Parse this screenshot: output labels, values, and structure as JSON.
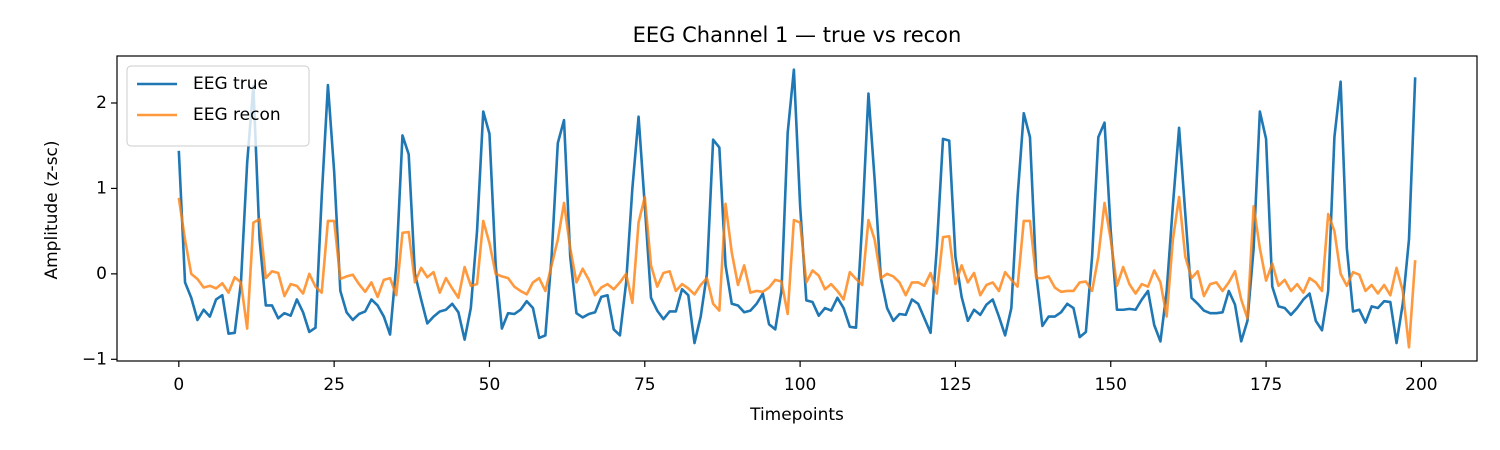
{
  "chart_data": {
    "type": "line",
    "title": "EEG Channel 1 — true vs recon",
    "xlabel": "Timepoints",
    "ylabel": "Amplitude (z-sc)",
    "xlim": [
      -9.95,
      208.95
    ],
    "ylim": [
      -1.02,
      2.55
    ],
    "xticks": [
      0,
      25,
      50,
      75,
      100,
      125,
      150,
      175,
      200
    ],
    "yticks": [
      {
        "value": -1,
        "label": "−1"
      },
      0,
      1,
      2
    ],
    "legend": "upper left",
    "x": [
      0,
      1,
      2,
      3,
      4,
      5,
      6,
      7,
      8,
      9,
      10,
      11,
      12,
      13,
      14,
      15,
      16,
      17,
      18,
      19,
      20,
      21,
      22,
      23,
      24,
      25,
      26,
      27,
      28,
      29,
      30,
      31,
      32,
      33,
      34,
      35,
      36,
      37,
      38,
      39,
      40,
      41,
      42,
      43,
      44,
      45,
      46,
      47,
      48,
      49,
      50,
      51,
      52,
      53,
      54,
      55,
      56,
      57,
      58,
      59,
      60,
      61,
      62,
      63,
      64,
      65,
      66,
      67,
      68,
      69,
      70,
      71,
      72,
      73,
      74,
      75,
      76,
      77,
      78,
      79,
      80,
      81,
      82,
      83,
      84,
      85,
      86,
      87,
      88,
      89,
      90,
      91,
      92,
      93,
      94,
      95,
      96,
      97,
      98,
      99,
      100,
      101,
      102,
      103,
      104,
      105,
      106,
      107,
      108,
      109,
      110,
      111,
      112,
      113,
      114,
      115,
      116,
      117,
      118,
      119,
      120,
      121,
      122,
      123,
      124,
      125,
      126,
      127,
      128,
      129,
      130,
      131,
      132,
      133,
      134,
      135,
      136,
      137,
      138,
      139,
      140,
      141,
      142,
      143,
      144,
      145,
      146,
      147,
      148,
      149,
      150,
      151,
      152,
      153,
      154,
      155,
      156,
      157,
      158,
      159,
      160,
      161,
      162,
      163,
      164,
      165,
      166,
      167,
      168,
      169,
      170,
      171,
      172,
      173,
      174,
      175,
      176,
      177,
      178,
      179,
      180,
      181,
      182,
      183,
      184,
      185,
      186,
      187,
      188,
      189,
      190,
      191,
      192,
      193,
      194,
      195,
      196,
      197,
      198,
      199
    ],
    "series": [
      {
        "name": "EEG true",
        "color": "#1f77b4",
        "alpha": 1,
        "values": [
          1.44,
          -0.1,
          -0.28,
          -0.54,
          -0.42,
          -0.5,
          -0.3,
          -0.25,
          -0.7,
          -0.69,
          -0.1,
          1.3,
          2.2,
          0.4,
          -0.37,
          -0.37,
          -0.52,
          -0.46,
          -0.49,
          -0.3,
          -0.45,
          -0.68,
          -0.63,
          0.9,
          2.21,
          1.2,
          -0.2,
          -0.45,
          -0.54,
          -0.47,
          -0.44,
          -0.3,
          -0.37,
          -0.5,
          -0.71,
          0.1,
          1.62,
          1.4,
          0.0,
          -0.3,
          -0.58,
          -0.5,
          -0.44,
          -0.42,
          -0.35,
          -0.45,
          -0.77,
          -0.4,
          0.5,
          1.9,
          1.64,
          0.1,
          -0.64,
          -0.46,
          -0.47,
          -0.42,
          -0.32,
          -0.4,
          -0.75,
          -0.72,
          0.2,
          1.53,
          1.8,
          0.2,
          -0.46,
          -0.51,
          -0.47,
          -0.45,
          -0.27,
          -0.25,
          -0.65,
          -0.72,
          -0.1,
          1.0,
          1.84,
          0.8,
          -0.28,
          -0.43,
          -0.53,
          -0.44,
          -0.44,
          -0.18,
          -0.25,
          -0.81,
          -0.5,
          0.0,
          1.57,
          1.48,
          0.1,
          -0.35,
          -0.37,
          -0.45,
          -0.43,
          -0.35,
          -0.23,
          -0.59,
          -0.65,
          -0.2,
          1.65,
          2.39,
          0.8,
          -0.31,
          -0.33,
          -0.49,
          -0.4,
          -0.43,
          -0.28,
          -0.4,
          -0.62,
          -0.63,
          0.6,
          2.11,
          1.1,
          -0.05,
          -0.4,
          -0.55,
          -0.47,
          -0.48,
          -0.3,
          -0.35,
          -0.52,
          -0.69,
          0.3,
          1.58,
          1.56,
          0.2,
          -0.27,
          -0.55,
          -0.42,
          -0.48,
          -0.36,
          -0.3,
          -0.5,
          -0.72,
          -0.4,
          0.9,
          1.88,
          1.6,
          0.0,
          -0.61,
          -0.5,
          -0.5,
          -0.45,
          -0.35,
          -0.4,
          -0.74,
          -0.68,
          0.2,
          1.6,
          1.77,
          0.5,
          -0.42,
          -0.42,
          -0.41,
          -0.42,
          -0.3,
          -0.2,
          -0.6,
          -0.79,
          -0.2,
          0.8,
          1.71,
          0.7,
          -0.28,
          -0.35,
          -0.43,
          -0.46,
          -0.46,
          -0.45,
          -0.2,
          -0.36,
          -0.79,
          -0.55,
          0.3,
          1.9,
          1.58,
          -0.15,
          -0.38,
          -0.4,
          -0.48,
          -0.4,
          -0.3,
          -0.23,
          -0.55,
          -0.66,
          -0.2,
          1.6,
          2.25,
          0.3,
          -0.44,
          -0.42,
          -0.57,
          -0.38,
          -0.4,
          -0.32,
          -0.33,
          -0.81,
          -0.35,
          0.4,
          2.3
        ]
      },
      {
        "name": "EEG recon",
        "color": "#ff7f0e",
        "alpha": 0.8,
        "values": [
          0.89,
          0.4,
          0.0,
          -0.06,
          -0.16,
          -0.14,
          -0.17,
          -0.11,
          -0.22,
          -0.04,
          -0.1,
          -0.64,
          0.6,
          0.64,
          -0.05,
          0.03,
          0.01,
          -0.26,
          -0.12,
          -0.14,
          -0.23,
          0.0,
          -0.15,
          -0.22,
          0.62,
          0.62,
          -0.06,
          -0.03,
          -0.01,
          -0.12,
          -0.21,
          -0.1,
          -0.27,
          -0.07,
          -0.05,
          -0.25,
          0.48,
          0.49,
          -0.1,
          0.07,
          -0.04,
          0.02,
          -0.22,
          -0.05,
          -0.17,
          -0.28,
          0.08,
          -0.14,
          -0.12,
          0.62,
          0.36,
          0.0,
          -0.03,
          -0.05,
          -0.15,
          -0.2,
          -0.24,
          -0.1,
          -0.05,
          -0.2,
          0.1,
          0.4,
          0.83,
          0.3,
          -0.1,
          0.06,
          -0.07,
          -0.25,
          -0.16,
          -0.12,
          -0.18,
          -0.1,
          0.0,
          -0.34,
          0.6,
          0.9,
          0.1,
          -0.15,
          0.01,
          0.03,
          -0.2,
          -0.12,
          -0.17,
          -0.24,
          -0.13,
          -0.05,
          -0.35,
          -0.43,
          0.82,
          0.25,
          -0.13,
          0.1,
          -0.22,
          -0.2,
          -0.21,
          -0.16,
          -0.07,
          -0.09,
          -0.47,
          0.63,
          0.6,
          -0.1,
          0.04,
          -0.02,
          -0.18,
          -0.12,
          -0.2,
          -0.3,
          0.02,
          -0.06,
          -0.13,
          0.63,
          0.4,
          -0.05,
          0.0,
          -0.03,
          -0.1,
          -0.25,
          -0.1,
          -0.1,
          -0.14,
          0.01,
          -0.23,
          0.43,
          0.44,
          -0.12,
          0.1,
          -0.1,
          0.01,
          -0.25,
          -0.13,
          -0.1,
          -0.2,
          0.02,
          -0.07,
          -0.15,
          0.62,
          0.62,
          -0.05,
          -0.05,
          -0.03,
          -0.16,
          -0.21,
          -0.2,
          -0.2,
          -0.1,
          -0.09,
          -0.2,
          0.2,
          0.83,
          0.4,
          -0.14,
          0.08,
          -0.12,
          -0.23,
          -0.12,
          -0.15,
          0.04,
          -0.1,
          -0.5,
          0.4,
          0.9,
          0.2,
          -0.05,
          0.03,
          -0.26,
          -0.12,
          -0.1,
          -0.2,
          -0.1,
          0.03,
          -0.3,
          -0.52,
          0.79,
          0.3,
          -0.08,
          0.12,
          -0.14,
          -0.07,
          -0.2,
          -0.12,
          -0.22,
          -0.05,
          -0.1,
          -0.2,
          0.7,
          0.5,
          0.0,
          -0.14,
          0.02,
          -0.01,
          -0.2,
          -0.13,
          -0.23,
          -0.13,
          -0.25,
          0.07,
          -0.2,
          -0.86,
          0.16
        ]
      }
    ]
  }
}
